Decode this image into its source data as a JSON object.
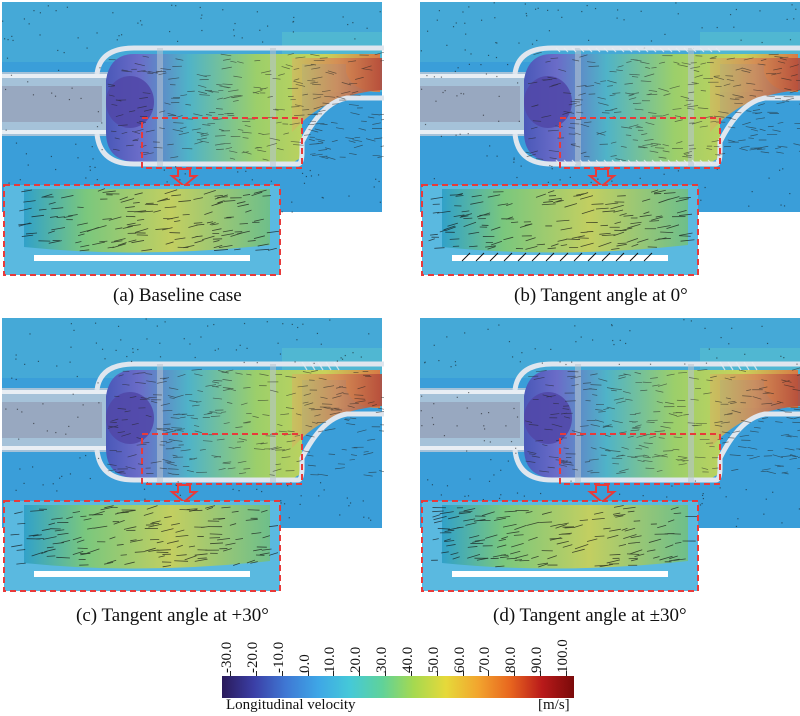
{
  "panels": [
    {
      "caption": "(a) Baseline case",
      "variant": "baseline"
    },
    {
      "caption": "(b) Tangent angle at 0°",
      "variant": "zero"
    },
    {
      "caption": "(c) Tangent angle at +30°",
      "variant": "plus30"
    },
    {
      "caption": "(d) Tangent angle at ±30°",
      "variant": "pm30"
    }
  ],
  "colorbar": {
    "ticks": [
      "-30.0",
      "-20.0",
      "-10.0",
      "0.0",
      "10.0",
      "20.0",
      "30.0",
      "40.0",
      "50.0",
      "60.0",
      "70.0",
      "80.0",
      "90.0",
      "100.0"
    ],
    "title": "Longitudinal  velocity",
    "unit": "[m/s]",
    "colors": [
      "#2a1a5a",
      "#3b3fa6",
      "#3f78d4",
      "#3ea6e6",
      "#45c9d8",
      "#5fd29a",
      "#a6d94f",
      "#e6d93a",
      "#f2a52e",
      "#e8661f",
      "#b91a1a",
      "#7a0a0a"
    ]
  },
  "highlight_color": "#e83a3a",
  "background_color": "#3a9ed9"
}
